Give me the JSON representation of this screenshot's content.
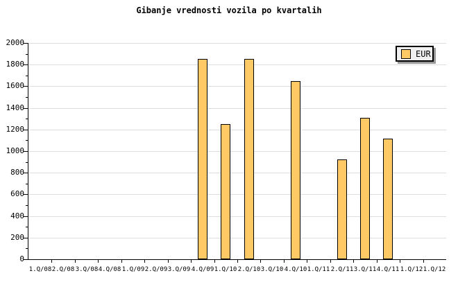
{
  "title": "Gibanje vrednosti vozila po kvartalih",
  "legend": {
    "label": "EUR"
  },
  "colors": {
    "background": "#FFFFFF",
    "bar_fill": "#FFC966",
    "bar_border": "#000000",
    "gridline": "#DDDDDD",
    "axis": "#000000",
    "legend_bg": "#F0F0F0",
    "legend_shadow": "#999999",
    "text": "#000000"
  },
  "chart_data": {
    "type": "bar",
    "title": "Gibanje vrednosti vozila po kvartalih",
    "xlabel": "",
    "ylabel": "",
    "categories": [
      "1.Q/08",
      "2.Q/08",
      "3.Q/08",
      "4.Q/08",
      "1.Q/09",
      "2.Q/09",
      "3.Q/09",
      "4.Q/09",
      "1.Q/10",
      "2.Q/10",
      "3.Q/10",
      "4.Q/10",
      "1.Q/11",
      "2.Q/11",
      "3.Q/11",
      "4.Q/11",
      "1.Q/12",
      "1.Q/12"
    ],
    "series": [
      {
        "name": "EUR",
        "values": [
          null,
          null,
          null,
          null,
          null,
          null,
          null,
          1850,
          1250,
          1850,
          null,
          1650,
          null,
          920,
          1310,
          1115,
          null,
          null
        ]
      }
    ],
    "ylim": [
      0,
      2000
    ],
    "ytick_major": 200,
    "ytick_minor": 100,
    "grid": "horizontal-major",
    "legend_position": "top-right"
  }
}
